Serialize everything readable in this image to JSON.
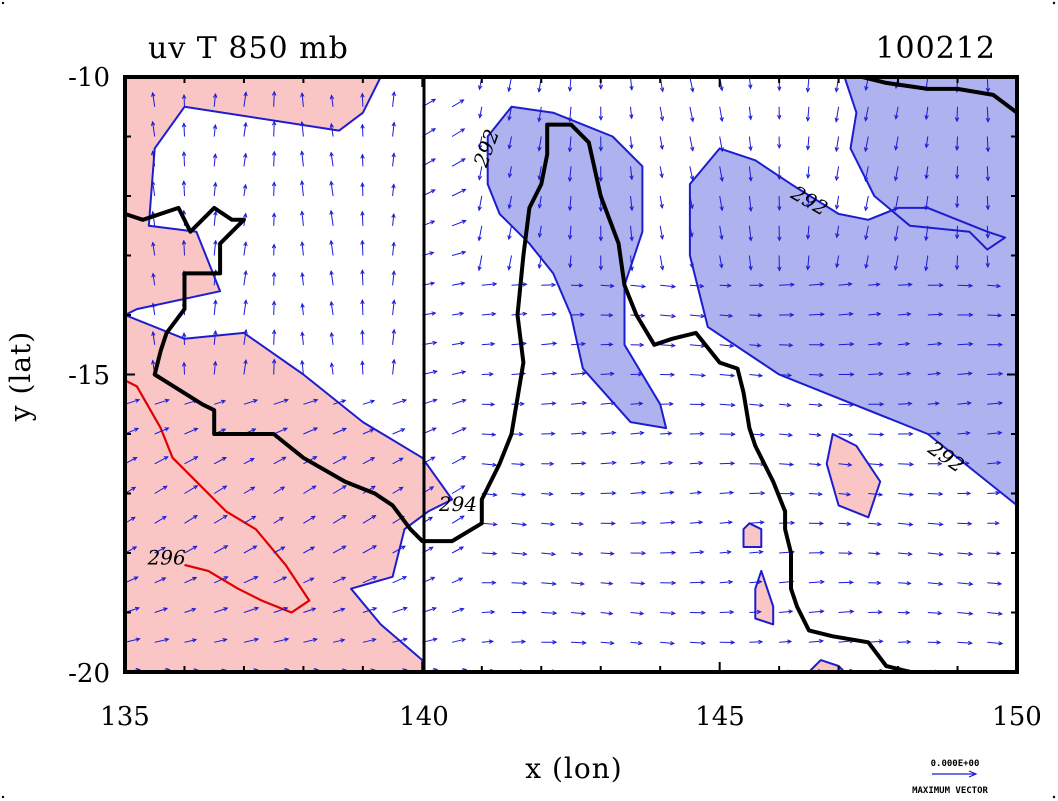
{
  "chart_data": {
    "type": "contour",
    "title": "uv T 850 mb",
    "date_label": "100212",
    "xlabel": "x (lon)",
    "ylabel": "y (lat)",
    "xlim": [
      135,
      150
    ],
    "ylim": [
      -20,
      -10
    ],
    "x_ticks": [
      "135",
      "140",
      "145",
      "150"
    ],
    "y_ticks": [
      "-10",
      "-15",
      "-20"
    ],
    "x_tick_values": [
      135,
      140,
      145,
      150
    ],
    "y_tick_values": [
      -10,
      -15,
      -20
    ],
    "contour_labels": [
      {
        "text": "292",
        "lon": 141.1,
        "lat": -11.2,
        "rot": -70,
        "color": "#000000"
      },
      {
        "text": "292",
        "lon": 146.5,
        "lat": -12.1,
        "rot": 30,
        "color": "#000000"
      },
      {
        "text": "292",
        "lon": 148.8,
        "lat": -16.4,
        "rot": 35,
        "color": "#000000"
      },
      {
        "text": "294",
        "lon": 140.6,
        "lat": -17.2,
        "rot": 0,
        "color": "#000000"
      },
      {
        "text": "296",
        "lon": 135.7,
        "lat": -18.1,
        "rot": 0,
        "color": "#000000"
      }
    ],
    "warm_regions": [
      [
        [
          135,
          -10
        ],
        [
          139.3,
          -10
        ],
        [
          139.0,
          -10.6
        ],
        [
          138.6,
          -10.9
        ],
        [
          136.0,
          -10.5
        ],
        [
          135.5,
          -11.2
        ],
        [
          135.4,
          -12.5
        ],
        [
          136.2,
          -12.6
        ],
        [
          136.6,
          -13.6
        ],
        [
          135.2,
          -13.9
        ],
        [
          135,
          -14.0
        ]
      ],
      [
        [
          135,
          -14.0
        ],
        [
          136.0,
          -14.4
        ],
        [
          137.0,
          -14.3
        ],
        [
          138.0,
          -15.0
        ],
        [
          139.0,
          -15.8
        ],
        [
          140.0,
          -16.4
        ],
        [
          140.5,
          -17.1
        ],
        [
          140.1,
          -17.3
        ],
        [
          139.7,
          -17.6
        ],
        [
          139.5,
          -18.4
        ],
        [
          138.8,
          -18.6
        ],
        [
          139.3,
          -19.2
        ],
        [
          140,
          -19.8
        ],
        [
          140,
          -20
        ],
        [
          135,
          -20
        ]
      ],
      [
        [
          146.9,
          -16.0
        ],
        [
          147.3,
          -16.2
        ],
        [
          147.7,
          -16.8
        ],
        [
          147.5,
          -17.4
        ],
        [
          147.0,
          -17.2
        ],
        [
          146.8,
          -16.5
        ]
      ],
      [
        [
          145.5,
          -17.5
        ],
        [
          145.7,
          -17.6
        ],
        [
          145.7,
          -17.9
        ],
        [
          145.4,
          -17.9
        ],
        [
          145.4,
          -17.6
        ]
      ],
      [
        [
          145.7,
          -18.3
        ],
        [
          145.9,
          -18.9
        ],
        [
          145.9,
          -19.2
        ],
        [
          145.6,
          -19.1
        ],
        [
          145.6,
          -18.6
        ]
      ],
      [
        [
          146.5,
          -20
        ],
        [
          146.7,
          -19.8
        ],
        [
          147.0,
          -19.9
        ],
        [
          147.1,
          -20
        ]
      ]
    ],
    "cool_regions": [
      [
        [
          141.5,
          -10.5
        ],
        [
          142.2,
          -10.6
        ],
        [
          143.2,
          -11.0
        ],
        [
          143.7,
          -11.5
        ],
        [
          143.7,
          -12.6
        ],
        [
          143.4,
          -13.5
        ],
        [
          143.4,
          -14.5
        ],
        [
          144.0,
          -15.5
        ],
        [
          144.1,
          -15.9
        ],
        [
          143.5,
          -15.8
        ],
        [
          142.7,
          -14.9
        ],
        [
          142.5,
          -14.0
        ],
        [
          142.2,
          -13.3
        ],
        [
          141.8,
          -12.8
        ],
        [
          141.3,
          -12.3
        ],
        [
          141.1,
          -11.8
        ],
        [
          141.1,
          -11.0
        ]
      ],
      [
        [
          147.1,
          -10
        ],
        [
          150,
          -10
        ],
        [
          150,
          -17.2
        ],
        [
          148.5,
          -16.0
        ],
        [
          146.0,
          -15.0
        ],
        [
          144.8,
          -14.2
        ],
        [
          144.5,
          -13.0
        ],
        [
          144.5,
          -11.8
        ],
        [
          145.0,
          -11.2
        ],
        [
          145.6,
          -11.4
        ],
        [
          146.2,
          -11.8
        ],
        [
          147.0,
          -12.3
        ],
        [
          147.5,
          -12.4
        ],
        [
          148.0,
          -12.2
        ],
        [
          148.5,
          -12.2
        ],
        [
          149.5,
          -12.6
        ],
        [
          149.8,
          -12.7
        ],
        [
          149.5,
          -12.9
        ],
        [
          149.2,
          -12.6
        ],
        [
          148.2,
          -12.5
        ],
        [
          147.6,
          -12.0
        ],
        [
          147.2,
          -11.2
        ],
        [
          147.3,
          -10.6
        ]
      ]
    ],
    "contours_296": [
      [
        [
          135,
          -15.1
        ],
        [
          135.2,
          -15.2
        ],
        [
          135.6,
          -15.9
        ],
        [
          135.8,
          -16.4
        ],
        [
          136.0,
          -16.6
        ],
        [
          136.7,
          -17.3
        ],
        [
          137.2,
          -17.6
        ],
        [
          137.7,
          -18.2
        ],
        [
          138.1,
          -18.8
        ],
        [
          137.8,
          -19.0
        ],
        [
          137.3,
          -18.8
        ],
        [
          136.9,
          -18.6
        ],
        [
          136.4,
          -18.3
        ],
        [
          136.0,
          -18.2
        ]
      ]
    ],
    "land_contour": [
      [
        135,
        -12.3
      ],
      [
        135.3,
        -12.4
      ],
      [
        135.9,
        -12.2
      ],
      [
        136.1,
        -12.6
      ],
      [
        136.5,
        -12.2
      ],
      [
        136.8,
        -12.4
      ],
      [
        137.0,
        -12.4
      ],
      [
        136.6,
        -12.8
      ],
      [
        136.6,
        -13.3
      ],
      [
        136.0,
        -13.3
      ],
      [
        136.0,
        -13.9
      ],
      [
        135.7,
        -14.3
      ],
      [
        135.6,
        -14.6
      ],
      [
        135.5,
        -15.0
      ],
      [
        136.3,
        -15.5
      ],
      [
        136.5,
        -15.6
      ],
      [
        136.5,
        -16.0
      ],
      [
        137.5,
        -16.0
      ],
      [
        138.0,
        -16.4
      ],
      [
        138.7,
        -16.8
      ],
      [
        139.2,
        -17.0
      ],
      [
        139.5,
        -17.2
      ],
      [
        139.8,
        -17.6
      ],
      [
        140.0,
        -17.8
      ],
      [
        140.5,
        -17.8
      ],
      [
        141.0,
        -17.5
      ],
      [
        141.0,
        -17.1
      ],
      [
        141.3,
        -16.5
      ],
      [
        141.5,
        -16.0
      ],
      [
        141.7,
        -14.8
      ],
      [
        141.6,
        -14.0
      ],
      [
        141.7,
        -13.0
      ],
      [
        141.8,
        -12.2
      ],
      [
        142.0,
        -11.8
      ],
      [
        142.1,
        -11.3
      ],
      [
        142.1,
        -10.8
      ],
      [
        142.5,
        -10.8
      ],
      [
        142.8,
        -11.1
      ],
      [
        143.0,
        -12.0
      ],
      [
        143.3,
        -12.8
      ],
      [
        143.4,
        -13.5
      ],
      [
        143.6,
        -14.0
      ],
      [
        143.9,
        -14.5
      ],
      [
        144.2,
        -14.4
      ],
      [
        144.6,
        -14.3
      ],
      [
        145.0,
        -14.8
      ],
      [
        145.3,
        -14.9
      ],
      [
        145.4,
        -15.3
      ],
      [
        145.5,
        -15.9
      ],
      [
        145.6,
        -16.2
      ],
      [
        145.9,
        -16.8
      ],
      [
        146.1,
        -17.3
      ],
      [
        146.1,
        -17.6
      ],
      [
        146.2,
        -18.0
      ],
      [
        146.2,
        -18.6
      ],
      [
        146.3,
        -18.9
      ],
      [
        146.5,
        -19.3
      ],
      [
        146.9,
        -19.4
      ],
      [
        147.5,
        -19.5
      ],
      [
        147.8,
        -19.9
      ],
      [
        148.2,
        -20
      ],
      [
        148.4,
        -20.2
      ]
    ],
    "land_contour_ne": [
      [
        147.4,
        -10
      ],
      [
        147.8,
        -10.1
      ],
      [
        148.5,
        -10.2
      ],
      [
        149.0,
        -10.2
      ],
      [
        149.6,
        -10.3
      ],
      [
        150,
        -10.6
      ]
    ],
    "vector_field": "uv wind at 850 mb",
    "reference_vector_label": "0.000E+00",
    "reference_vector_caption": "MAXIMUM VECTOR",
    "colors": {
      "warm_fill": "#f9c5c5",
      "cool_fill": "#aeb2ee",
      "contour_blue": "#1d1dd0",
      "contour_red": "#e00000",
      "arrow_blue": "#1a1ad8",
      "land": "#000000"
    }
  }
}
